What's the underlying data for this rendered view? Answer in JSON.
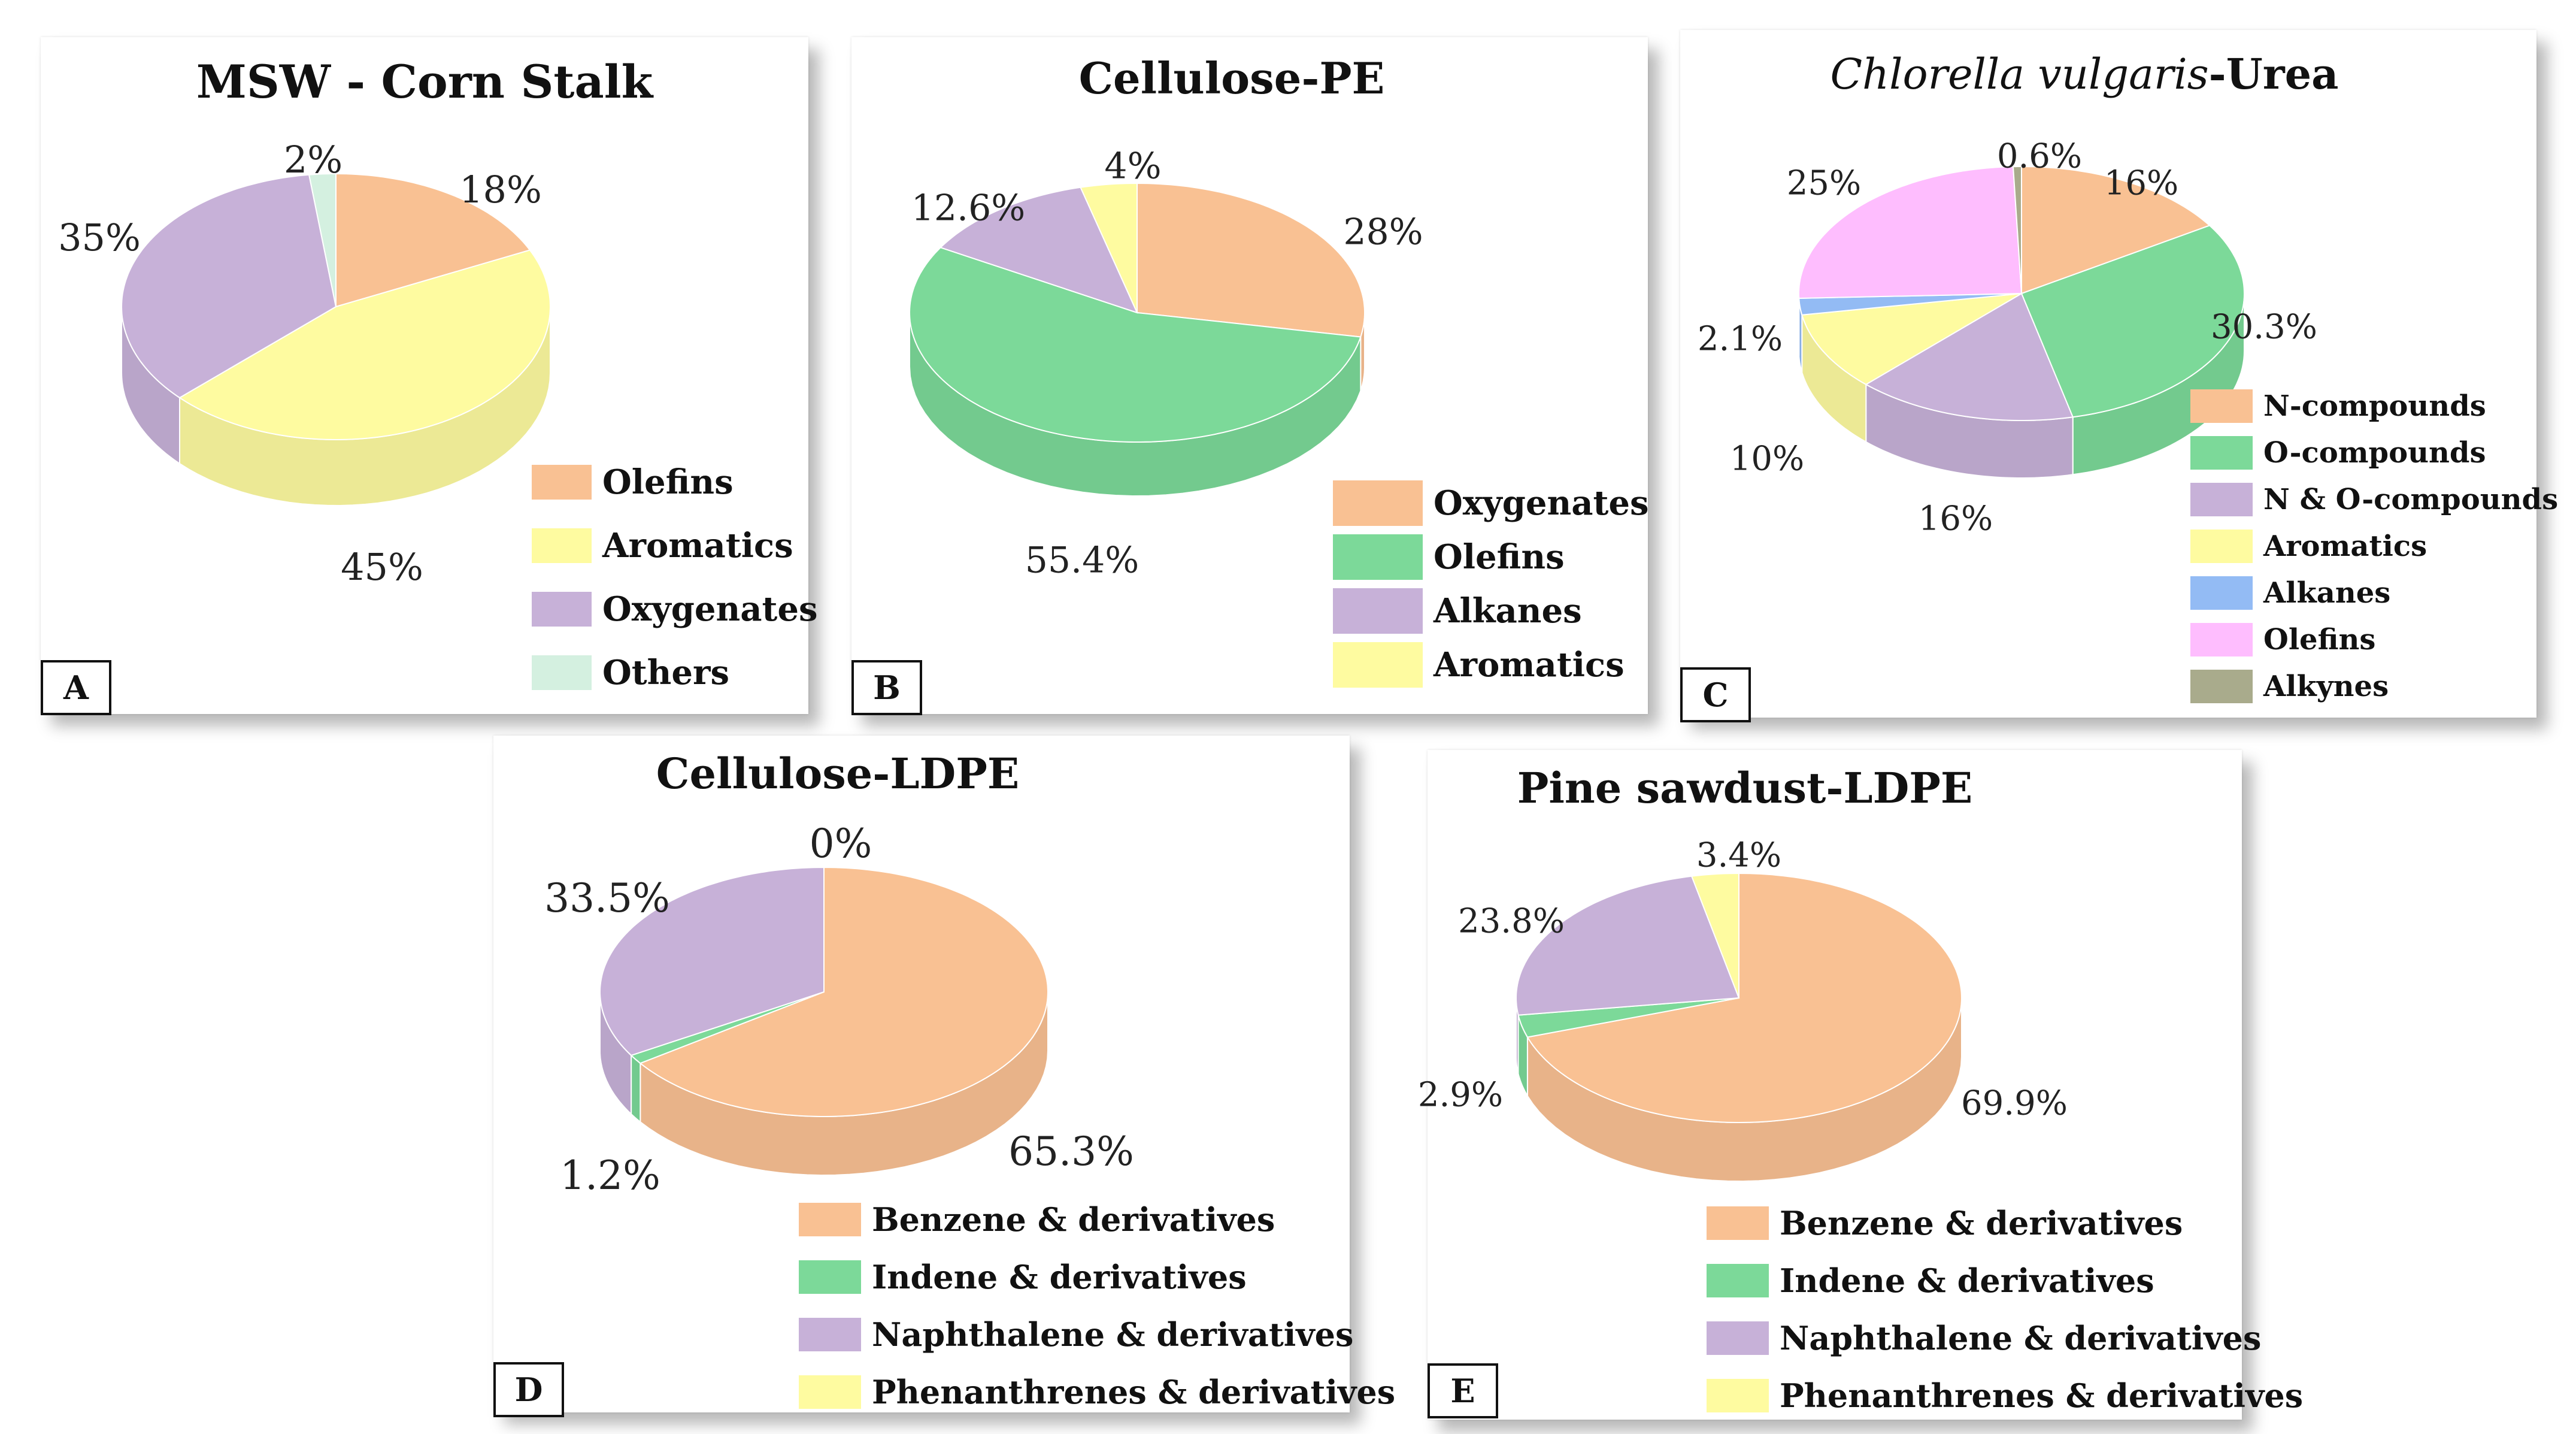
{
  "colors": {
    "peach": "#F9C193",
    "yellow": "#FEFBA0",
    "lavender": "#C7B1D8",
    "mint": "#D4F0E0",
    "green": "#7CD999",
    "blue": "#93BBF4",
    "pink": "#FEBDFE",
    "olive": "#A9AB8C"
  },
  "panels": [
    {
      "letter": "A",
      "title": "MSW - Corn Stalk",
      "chart_data": {
        "type": "pie",
        "title": "MSW - Corn Stalk",
        "categories": [
          "Olefins",
          "Aromatics",
          "Oxygenates",
          "Others"
        ],
        "values": [
          18,
          45,
          35,
          2
        ],
        "labels": [
          "18%",
          "45%",
          "35%",
          "2%"
        ],
        "colors": [
          "#F9C193",
          "#FEFBA0",
          "#C7B1D8",
          "#D4F0E0"
        ],
        "legend": "bottom-right"
      }
    },
    {
      "letter": "B",
      "title": "Cellulose-PE",
      "chart_data": {
        "type": "pie",
        "title": "Cellulose-PE",
        "categories": [
          "Oxygenates",
          "Olefins",
          "Alkanes",
          "Aromatics"
        ],
        "values": [
          28,
          55.4,
          12.6,
          4
        ],
        "labels": [
          "28%",
          "55.4%",
          "12.6%",
          "4%"
        ],
        "colors": [
          "#F9C193",
          "#7CD999",
          "#C7B1D8",
          "#FEFBA0"
        ],
        "legend": "bottom-right"
      }
    },
    {
      "letter": "C",
      "title_italic": "Chlorella vulgaris",
      "title_rest": "-Urea",
      "chart_data": {
        "type": "pie",
        "title": "Chlorella vulgaris-Urea",
        "categories": [
          "N-compounds",
          "O-compounds",
          "N & O-compounds",
          "Aromatics",
          "Alkanes",
          "Olefins",
          "Alkynes"
        ],
        "values": [
          16,
          30.3,
          16,
          10,
          2.1,
          25,
          0.6
        ],
        "labels": [
          "16%",
          "30.3%",
          "16%",
          "10%",
          "2.1%",
          "25%",
          "0.6%"
        ],
        "colors": [
          "#F9C193",
          "#7CD999",
          "#C7B1D8",
          "#FEFBA0",
          "#93BBF4",
          "#FEBDFE",
          "#A9AB8C"
        ],
        "legend": "bottom-right"
      }
    },
    {
      "letter": "D",
      "title": "Cellulose-LDPE",
      "chart_data": {
        "type": "pie",
        "title": "Cellulose-LDPE",
        "categories": [
          "Benzene & derivatives",
          "Indene & derivatives",
          "Naphthalene & derivatives",
          "Phenanthrenes & derivatives"
        ],
        "values": [
          65.3,
          1.2,
          33.5,
          0
        ],
        "labels": [
          "65.3%",
          "1.2%",
          "33.5%",
          "0%"
        ],
        "colors": [
          "#F9C193",
          "#7CD999",
          "#C7B1D8",
          "#FEFBA0"
        ],
        "legend": "bottom"
      }
    },
    {
      "letter": "E",
      "title": "Pine sawdust-LDPE",
      "chart_data": {
        "type": "pie",
        "title": "Pine sawdust-LDPE",
        "categories": [
          "Benzene & derivatives",
          "Indene & derivatives",
          "Naphthalene & derivatives",
          "Phenanthrenes & derivatives"
        ],
        "values": [
          69.9,
          2.9,
          23.8,
          3.4
        ],
        "labels": [
          "69.9%",
          "2.9%",
          "23.8%",
          "3.4%"
        ],
        "colors": [
          "#F9C193",
          "#7CD999",
          "#C7B1D8",
          "#FEFBA0"
        ],
        "legend": "bottom"
      }
    }
  ]
}
